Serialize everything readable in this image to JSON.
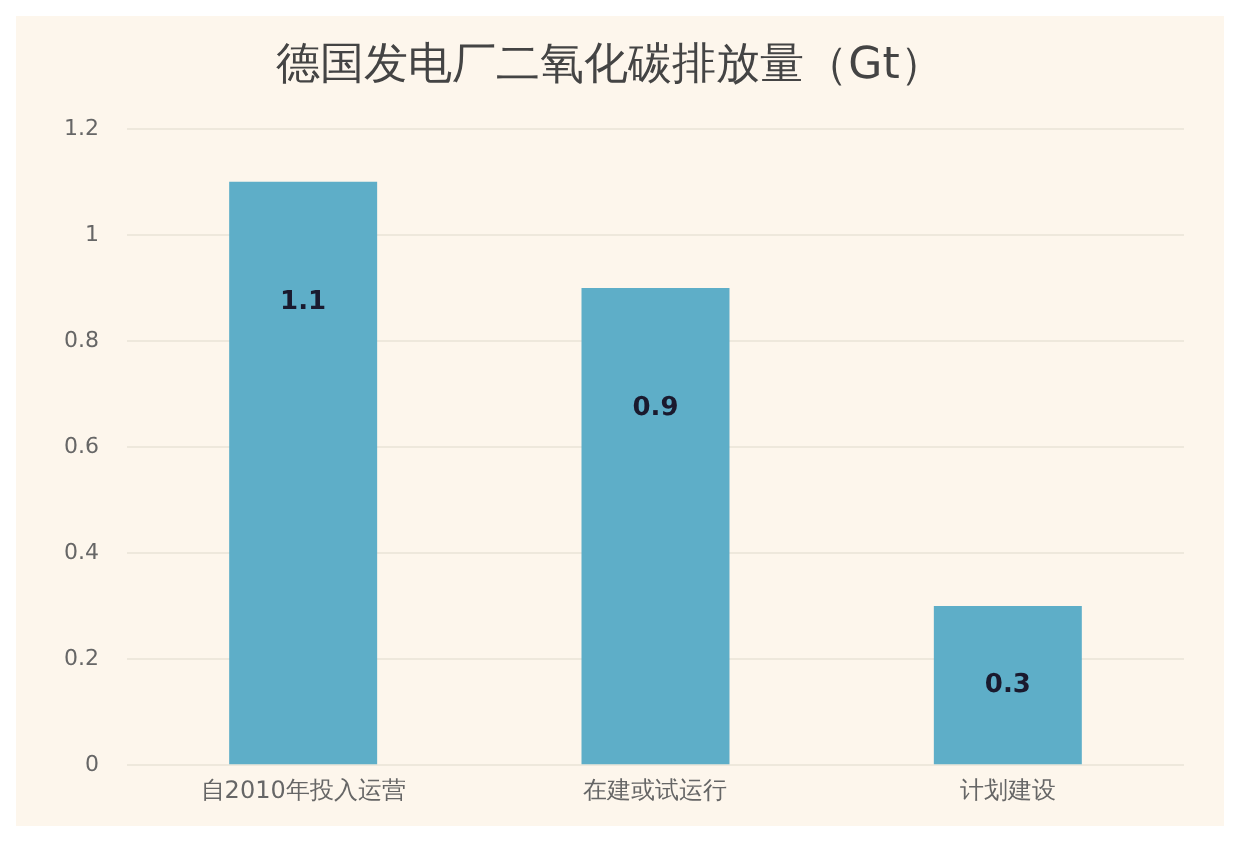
{
  "chart_data": {
    "type": "bar",
    "title": "德国发电厂二氧化碳排放量（Gt）",
    "categories": [
      "自2010年投入运营",
      "在建或试运行",
      "计划建设"
    ],
    "values": [
      1.1,
      0.9,
      0.3
    ],
    "color": "#5eaec8",
    "ylim": [
      0,
      1.2
    ],
    "yticks": [
      0,
      0.2,
      0.4,
      0.6,
      0.8,
      1,
      1.2
    ],
    "grid": "y",
    "data_labels": true,
    "legend": false
  }
}
